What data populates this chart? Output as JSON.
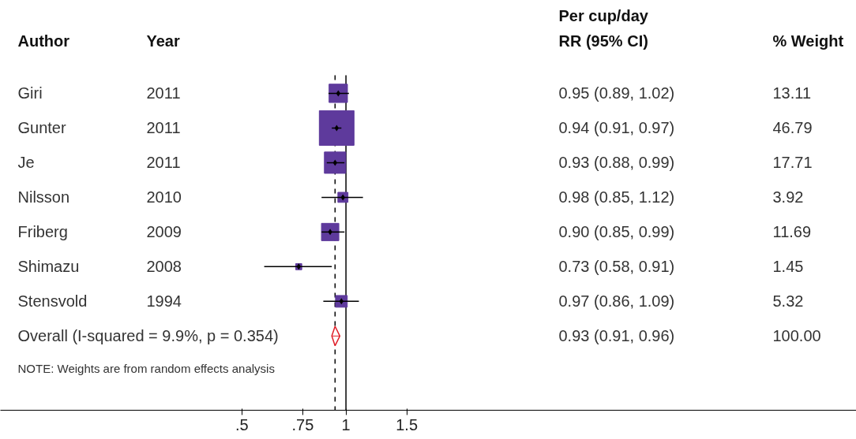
{
  "chart_data": {
    "type": "scatter",
    "orientation": "horizontal",
    "categories": [
      "Giri",
      "Gunter",
      "Je",
      "Nilsson",
      "Friberg",
      "Shimazu",
      "Stensvold",
      "Overall (I-squared = 9.9%, p = 0.354)"
    ],
    "series": [
      {
        "type": "bubble",
        "marker": "square",
        "color": "#5e3a9c",
        "values": [
          0.95,
          0.94,
          0.93,
          0.98,
          0.9,
          0.73,
          0.97,
          null
        ],
        "errors": [
          [
            0.89,
            1.02
          ],
          [
            0.91,
            0.97
          ],
          [
            0.88,
            0.99
          ],
          [
            0.85,
            1.12
          ],
          [
            0.85,
            0.99
          ],
          [
            0.58,
            0.91
          ],
          [
            0.86,
            1.09
          ],
          null
        ],
        "sizes": [
          0.28,
          1,
          0.378,
          0.084,
          0.25,
          0.031,
          0.114,
          null
        ]
      },
      {
        "type": "scatter",
        "marker": "diamond",
        "color": "#e0202a",
        "values": [
          null,
          null,
          null,
          null,
          null,
          null,
          null,
          0.93
        ],
        "errors": [
          null,
          null,
          null,
          null,
          null,
          null,
          null,
          [
            0.91,
            0.96
          ]
        ]
      }
    ],
    "log": "x",
    "xlim": [
      0.1,
      30
    ],
    "xticks": [
      {
        "value": 0.5,
        "label": ".5"
      },
      {
        "value": 0.75,
        "label": ".75"
      },
      1,
      {
        "value": 1.5,
        "label": "1.5"
      }
    ],
    "ref_lines": [
      {
        "axis": "x",
        "value": 1,
        "color": "#000000",
        "line_style": "solid"
      },
      {
        "axis": "x",
        "value": 0.93,
        "color": "#000000",
        "line_style": "dashed"
      }
    ],
    "grid": false,
    "annotations": [
      "Author",
      "Year",
      "Per cup/day\nRR (95% CI)",
      "% Weight",
      "2011",
      "2011",
      "2011",
      "2010",
      "2009",
      "2008",
      "1994",
      "13.11",
      "46.79",
      "17.71",
      "3.92",
      "11.69",
      "1.45",
      "5.32",
      "100.00",
      "NOTE: Weights are from random effects analysis",
      "0.95 (0.89, 1.02)",
      "0.94 (0.91, 0.97)",
      "0.93 (0.88, 0.99)",
      "0.98 (0.85, 1.12)",
      "0.90 (0.85, 0.99)",
      "0.73 (0.58, 0.91)",
      "0.97 (0.86, 1.09)",
      "0.93 (0.91, 0.96)"
    ]
  }
}
